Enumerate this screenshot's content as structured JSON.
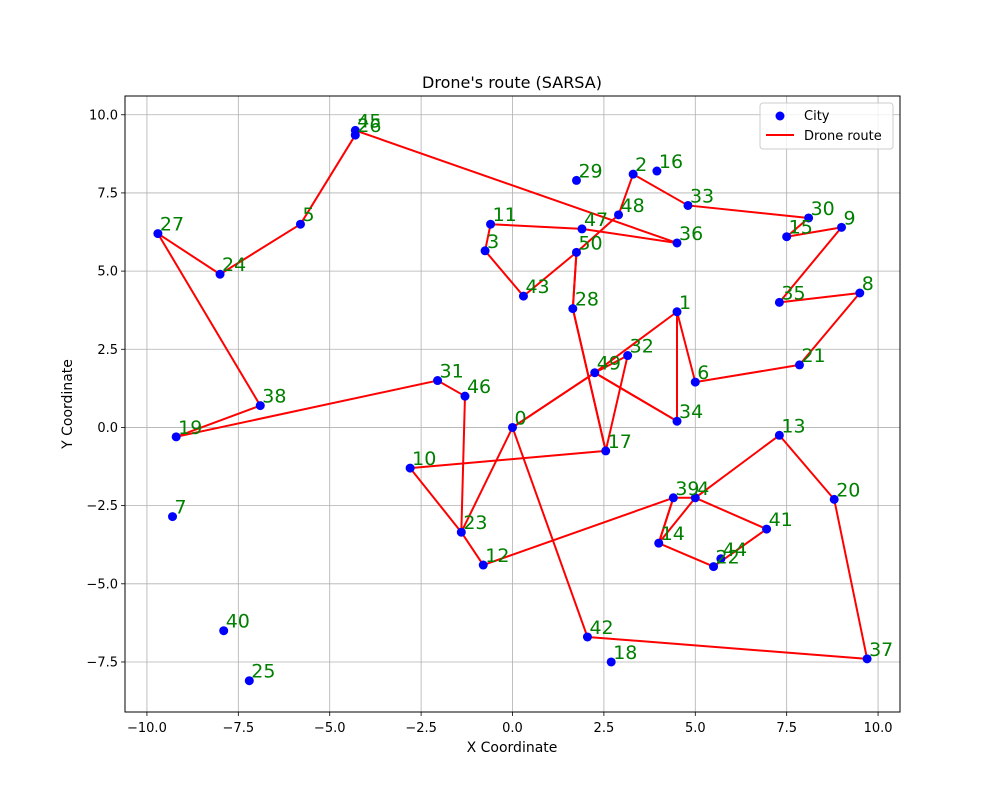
{
  "chart_data": {
    "type": "scatter",
    "title": "Drone's route (SARSA)",
    "xlabel": "X Coordinate",
    "ylabel": "Y Coordinate",
    "xlim": [
      -10.6,
      10.6
    ],
    "ylim": [
      -9.1,
      10.6
    ],
    "xticks": [
      -10.0,
      -7.5,
      -5.0,
      -2.5,
      0.0,
      2.5,
      5.0,
      7.5,
      10.0
    ],
    "yticks": [
      -7.5,
      -5.0,
      -2.5,
      0.0,
      2.5,
      5.0,
      7.5,
      10.0
    ],
    "xtick_labels": [
      "−10.0",
      "−7.5",
      "−5.0",
      "−2.5",
      "0.0",
      "2.5",
      "5.0",
      "7.5",
      "10.0"
    ],
    "ytick_labels": [
      "−7.5",
      "−5.0",
      "−2.5",
      "0.0",
      "2.5",
      "5.0",
      "7.5",
      "10.0"
    ],
    "grid": true,
    "legend_position": "top-right",
    "colors": {
      "city": "#0000ff",
      "route": "#ff0000",
      "label": "#008000",
      "grid": "#b0b0b0"
    },
    "legend": [
      {
        "name": "City",
        "marker": "dot",
        "color": "#0000ff"
      },
      {
        "name": "Drone route",
        "marker": "line",
        "color": "#ff0000"
      }
    ],
    "cities": [
      {
        "id": "0",
        "x": 0.0,
        "y": 0.0
      },
      {
        "id": "1",
        "x": 4.5,
        "y": 3.7
      },
      {
        "id": "2",
        "x": 3.3,
        "y": 8.1
      },
      {
        "id": "3",
        "x": -0.75,
        "y": 5.65
      },
      {
        "id": "4",
        "x": 5.0,
        "y": -2.25
      },
      {
        "id": "5",
        "x": -5.8,
        "y": 6.5
      },
      {
        "id": "6",
        "x": 5.0,
        "y": 1.45
      },
      {
        "id": "7",
        "x": -9.3,
        "y": -2.85
      },
      {
        "id": "8",
        "x": 9.5,
        "y": 4.3
      },
      {
        "id": "9",
        "x": 9.0,
        "y": 6.4
      },
      {
        "id": "10",
        "x": -2.8,
        "y": -1.3
      },
      {
        "id": "11",
        "x": -0.6,
        "y": 6.5
      },
      {
        "id": "12",
        "x": -0.8,
        "y": -4.4
      },
      {
        "id": "13",
        "x": 7.3,
        "y": -0.25
      },
      {
        "id": "14",
        "x": 4.0,
        "y": -3.7
      },
      {
        "id": "15",
        "x": 7.5,
        "y": 6.1
      },
      {
        "id": "16",
        "x": 3.95,
        "y": 8.2
      },
      {
        "id": "17",
        "x": 2.55,
        "y": -0.75
      },
      {
        "id": "18",
        "x": 2.7,
        "y": -7.5
      },
      {
        "id": "19",
        "x": -9.2,
        "y": -0.3
      },
      {
        "id": "20",
        "x": 8.8,
        "y": -2.3
      },
      {
        "id": "21",
        "x": 7.85,
        "y": 2.0
      },
      {
        "id": "22",
        "x": 5.5,
        "y": -4.45
      },
      {
        "id": "23",
        "x": -1.4,
        "y": -3.35
      },
      {
        "id": "24",
        "x": -8.0,
        "y": 4.9
      },
      {
        "id": "25",
        "x": -7.2,
        "y": -8.1
      },
      {
        "id": "26",
        "x": -4.3,
        "y": 9.35
      },
      {
        "id": "27",
        "x": -9.7,
        "y": 6.2
      },
      {
        "id": "28",
        "x": 1.65,
        "y": 3.8
      },
      {
        "id": "29",
        "x": 1.75,
        "y": 7.9
      },
      {
        "id": "30",
        "x": 8.1,
        "y": 6.7
      },
      {
        "id": "31",
        "x": -2.05,
        "y": 1.5
      },
      {
        "id": "32",
        "x": 3.15,
        "y": 2.3
      },
      {
        "id": "33",
        "x": 4.8,
        "y": 7.1
      },
      {
        "id": "34",
        "x": 4.5,
        "y": 0.2
      },
      {
        "id": "35",
        "x": 7.3,
        "y": 4.0
      },
      {
        "id": "36",
        "x": 4.5,
        "y": 5.9
      },
      {
        "id": "37",
        "x": 9.7,
        "y": -7.4
      },
      {
        "id": "38",
        "x": -6.9,
        "y": 0.7
      },
      {
        "id": "39",
        "x": 4.4,
        "y": -2.25
      },
      {
        "id": "40",
        "x": -7.9,
        "y": -6.5
      },
      {
        "id": "41",
        "x": 6.95,
        "y": -3.25
      },
      {
        "id": "42",
        "x": 2.05,
        "y": -6.7
      },
      {
        "id": "43",
        "x": 0.3,
        "y": 4.2
      },
      {
        "id": "44",
        "x": 5.7,
        "y": -4.2
      },
      {
        "id": "45",
        "x": -4.3,
        "y": 9.5
      },
      {
        "id": "46",
        "x": -1.3,
        "y": 1.0
      },
      {
        "id": "47",
        "x": 1.9,
        "y": 6.35
      },
      {
        "id": "48",
        "x": 2.9,
        "y": 6.8
      },
      {
        "id": "49",
        "x": 2.25,
        "y": 1.75
      },
      {
        "id": "50",
        "x": 1.75,
        "y": 5.6
      }
    ],
    "route": [
      "0",
      "23",
      "46",
      "31",
      "19",
      "38",
      "27",
      "24",
      "5",
      "26",
      "45",
      "36",
      "47",
      "11",
      "3",
      "43",
      "50",
      "28",
      "17",
      "10",
      "23",
      "12",
      "39",
      "14",
      "22",
      "41",
      "4",
      "14",
      "39",
      "4",
      "13",
      "20",
      "37",
      "42",
      "0",
      "49",
      "32",
      "17",
      "28",
      "50",
      "48",
      "2",
      "33",
      "30",
      "15",
      "9",
      "35",
      "8",
      "21",
      "6",
      "1",
      "34",
      "49",
      "1",
      "34",
      "49",
      "0"
    ]
  }
}
